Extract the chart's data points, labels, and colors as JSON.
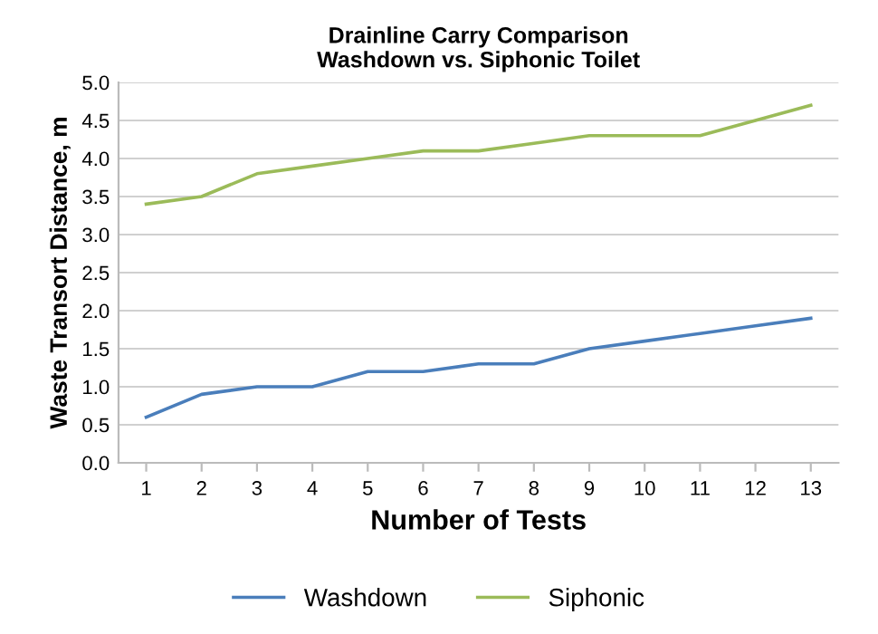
{
  "chart_data": {
    "type": "line",
    "title": "Drainline Carry Comparison\nWashdown vs. Siphonic Toilet",
    "xlabel": "Number of Tests",
    "ylabel": "Waste Transort Distance, m",
    "categories": [
      "1",
      "2",
      "3",
      "4",
      "5",
      "6",
      "7",
      "8",
      "9",
      "10",
      "11",
      "12",
      "13"
    ],
    "series": [
      {
        "name": "Washdown",
        "color": "#4a7ebb",
        "values": [
          0.6,
          0.9,
          1.0,
          1.0,
          1.2,
          1.2,
          1.3,
          1.3,
          1.5,
          1.6,
          1.7,
          1.8,
          1.9
        ]
      },
      {
        "name": "Siphonic",
        "color": "#9bbb59",
        "values": [
          3.4,
          3.5,
          3.8,
          3.9,
          4.0,
          4.1,
          4.1,
          4.2,
          4.3,
          4.3,
          4.3,
          4.5,
          4.7
        ]
      }
    ],
    "ylim": [
      0,
      5
    ],
    "yticks": [
      {
        "value": 0,
        "label": "0.0"
      },
      {
        "value": 0.5,
        "label": "0.5"
      },
      {
        "value": 1,
        "label": "1.0"
      },
      {
        "value": 1.5,
        "label": "1.5"
      },
      {
        "value": 2,
        "label": "2.0"
      },
      {
        "value": 2.5,
        "label": "2.5"
      },
      {
        "value": 3,
        "label": "3.0"
      },
      {
        "value": 3.5,
        "label": "3.5"
      },
      {
        "value": 4,
        "label": "4.0"
      },
      {
        "value": 4.5,
        "label": "4.5"
      },
      {
        "value": 5,
        "label": "5.0"
      }
    ],
    "grid": "y",
    "legend": "bottom"
  }
}
